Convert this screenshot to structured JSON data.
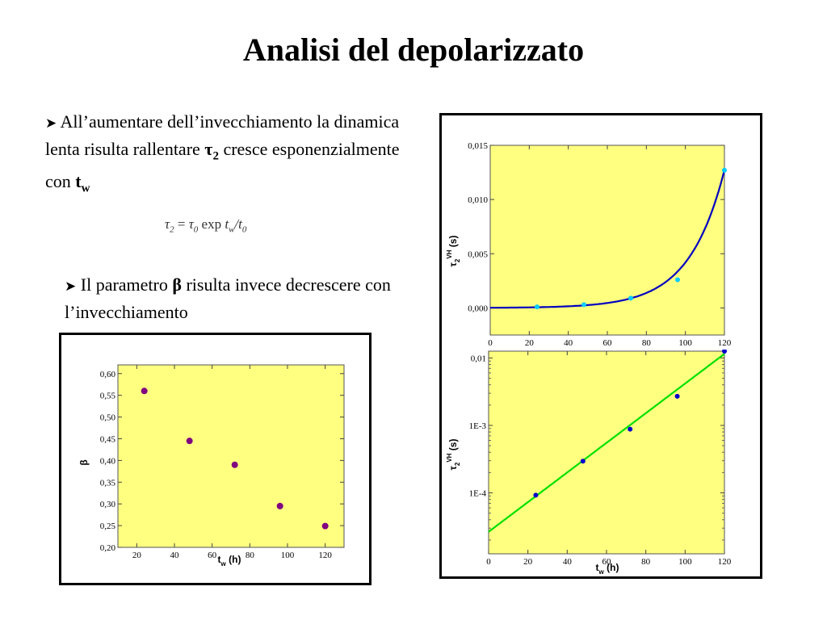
{
  "slide": {
    "title": "Analisi del depolarizzato",
    "bullet1": {
      "lead": "All’aumentare dell’invecchiamento la dinamica lenta risulta rallentare",
      "tau": "τ",
      "tau_sub": "2",
      "mid": "cresce esponenzialmente con",
      "tw": "t",
      "tw_sub": "w"
    },
    "formula": {
      "lhs": "τ",
      "lhs_sub": "2",
      "eq": " = ",
      "rhs": "τ",
      "rhs_sub": "0",
      "func": " exp ",
      "arg": "t",
      "arg_sub": "w",
      "div": "/t",
      "div_sub": "0"
    },
    "bullet2": {
      "lead": "Il parametro",
      "beta": "β",
      "rest": "risulta invece decrescere con l’invecchiamento"
    }
  },
  "colors": {
    "plot_background": "#ffff80",
    "fit_curve": "#0000c0",
    "fit_line": "#00e000",
    "points_light": "#00ccff",
    "points_dark": "#0000cc",
    "points_beta": "#800080"
  },
  "chart_data": [
    {
      "id": "beta",
      "type": "scatter",
      "xlabel": "t",
      "xlabel_sub": "w",
      "xlabel_unit": " (h)",
      "ylabel": "β",
      "xlim": [
        10,
        130
      ],
      "ylim": [
        0.2,
        0.62
      ],
      "xticks": [
        20,
        40,
        60,
        80,
        100,
        120
      ],
      "xtick_labels": [
        "20",
        "40",
        "60",
        "80",
        "100",
        "120"
      ],
      "yticks": [
        0.2,
        0.25,
        0.3,
        0.35,
        0.4,
        0.45,
        0.5,
        0.55,
        0.6
      ],
      "ytick_labels": [
        "0,20",
        "0,25",
        "0,30",
        "0,35",
        "0,40",
        "0,45",
        "0,50",
        "0,55",
        "0,60"
      ],
      "points": [
        [
          24,
          0.56
        ],
        [
          48,
          0.445
        ],
        [
          72,
          0.39
        ],
        [
          96,
          0.295
        ],
        [
          120,
          0.249
        ]
      ],
      "color": "#800080"
    },
    {
      "id": "tau_linear",
      "type": "scatter",
      "xlabel": "t",
      "xlabel_sub": "w",
      "xlabel_unit": " (h)",
      "ylabel": "τ",
      "ylabel_sub": "2",
      "ylabel_sup": "VH",
      "ylabel_unit": " (s)",
      "xlim": [
        0,
        120
      ],
      "ylim": [
        -0.0025,
        0.015
      ],
      "xticks": [
        0,
        20,
        40,
        60,
        80,
        100,
        120
      ],
      "xtick_labels": [
        "0",
        "20",
        "40",
        "60",
        "80",
        "100",
        "120"
      ],
      "yticks": [
        0.0,
        0.005,
        0.01,
        0.015
      ],
      "ytick_labels": [
        "0,000",
        "0,005",
        "0,010",
        "0,015"
      ],
      "points": [
        [
          24,
          0.0001
        ],
        [
          48,
          0.0003
        ],
        [
          72,
          0.0009
        ],
        [
          96,
          0.0026
        ],
        [
          120,
          0.0127
        ]
      ],
      "color": "#00ccff",
      "fit": {
        "type": "exponential",
        "a": 1.63e-05,
        "b": 0.0555,
        "color": "#0000c0"
      }
    },
    {
      "id": "tau_log",
      "type": "scatter",
      "log_y": true,
      "xlabel": "t",
      "xlabel_sub": "w",
      "xlabel_unit": " (h)",
      "ylabel": "τ",
      "ylabel_sub": "2",
      "ylabel_sup": "VH",
      "ylabel_unit": " (s)",
      "xlim": [
        0,
        120
      ],
      "ylim": [
        1.25e-05,
        0.0126
      ],
      "xticks": [
        0,
        20,
        40,
        60,
        80,
        100,
        120
      ],
      "xtick_labels": [
        "0",
        "20",
        "40",
        "60",
        "80",
        "100",
        "120"
      ],
      "yticks": [
        0.0001,
        0.001,
        0.01
      ],
      "ytick_labels": [
        "1E-4",
        "1E-3",
        "0,01"
      ],
      "points": [
        [
          24,
          9.25e-05
        ],
        [
          48,
          0.000295
        ],
        [
          72,
          0.00088
        ],
        [
          96,
          0.0027
        ],
        [
          120,
          0.0126
        ]
      ],
      "color": "#0000cc",
      "fit": {
        "type": "exponential",
        "a": 2.65e-05,
        "b": 0.0506,
        "color": "#00e000"
      }
    }
  ]
}
